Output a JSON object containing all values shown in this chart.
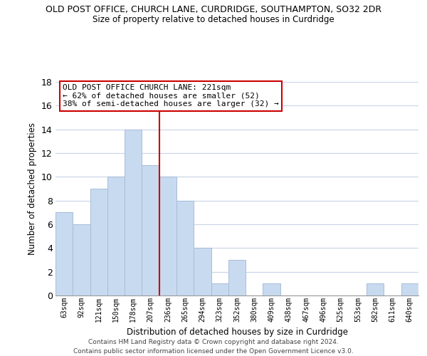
{
  "title": "OLD POST OFFICE, CHURCH LANE, CURDRIDGE, SOUTHAMPTON, SO32 2DR",
  "subtitle": "Size of property relative to detached houses in Curdridge",
  "xlabel": "Distribution of detached houses by size in Curdridge",
  "ylabel": "Number of detached properties",
  "bar_color": "#c8daf0",
  "bar_edge_color": "#a8bcd8",
  "categories": [
    "63sqm",
    "92sqm",
    "121sqm",
    "150sqm",
    "178sqm",
    "207sqm",
    "236sqm",
    "265sqm",
    "294sqm",
    "323sqm",
    "352sqm",
    "380sqm",
    "409sqm",
    "438sqm",
    "467sqm",
    "496sqm",
    "525sqm",
    "553sqm",
    "582sqm",
    "611sqm",
    "640sqm"
  ],
  "values": [
    7,
    6,
    9,
    10,
    14,
    11,
    10,
    8,
    4,
    1,
    3,
    0,
    1,
    0,
    0,
    0,
    0,
    0,
    1,
    0,
    1
  ],
  "ylim": [
    0,
    18
  ],
  "yticks": [
    0,
    2,
    4,
    6,
    8,
    10,
    12,
    14,
    16,
    18
  ],
  "vline_color": "#cc0000",
  "annotation_title": "OLD POST OFFICE CHURCH LANE: 221sqm",
  "annotation_line1": "← 62% of detached houses are smaller (52)",
  "annotation_line2": "38% of semi-detached houses are larger (32) →",
  "annotation_box_color": "#ffffff",
  "annotation_box_edge_color": "#cc0000",
  "footer_line1": "Contains HM Land Registry data © Crown copyright and database right 2024.",
  "footer_line2": "Contains public sector information licensed under the Open Government Licence v3.0.",
  "background_color": "#ffffff",
  "grid_color": "#c8d4e8"
}
